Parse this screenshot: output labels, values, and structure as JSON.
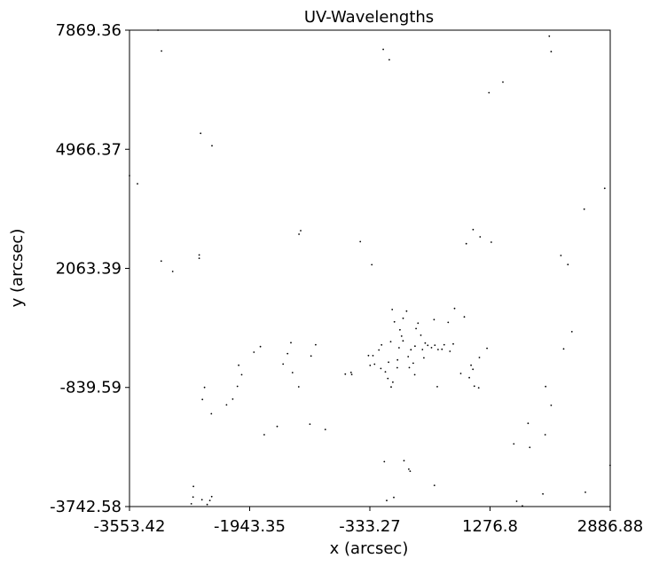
{
  "chart_data": {
    "type": "scatter",
    "title": "UV-Wavelengths",
    "xlabel": "x (arcsec)",
    "ylabel": "y (arcsec)",
    "xlim": [
      -3553.42,
      2886.88
    ],
    "ylim": [
      -3742.58,
      7869.36
    ],
    "xticks": [
      -3553.42,
      -1943.35,
      -333.27,
      1276.8,
      2886.88
    ],
    "xtick_labels": [
      "-3553.42",
      "-1943.35",
      "-333.27",
      "1276.8",
      "2886.88"
    ],
    "yticks": [
      -3742.58,
      -839.59,
      2063.39,
      4966.37,
      7869.36
    ],
    "ytick_labels": [
      "-3742.58",
      "-839.59",
      "2063.39",
      "4966.37",
      "7869.36"
    ],
    "grid": false,
    "marker_color": "#000000",
    "points": [
      [
        -3172,
        7869
      ],
      [
        -3124,
        7362
      ],
      [
        -2600,
        5355
      ],
      [
        -2448,
        5052
      ],
      [
        -3553,
        4323
      ],
      [
        -3446,
        4127
      ],
      [
        -3128,
        2240
      ],
      [
        -2975,
        1987
      ],
      [
        -2620,
        2390
      ],
      [
        -2620,
        2309
      ],
      [
        -1283,
        2895
      ],
      [
        -1260,
        2982
      ],
      [
        -462,
        2714
      ],
      [
        -307,
        2153
      ],
      [
        -154,
        7403
      ],
      [
        -73,
        7148
      ],
      [
        1262,
        6345
      ],
      [
        1449,
        6604
      ],
      [
        2070,
        7723
      ],
      [
        2095,
        7346
      ],
      [
        2539,
        3506
      ],
      [
        2813,
        4013
      ],
      [
        1144,
        2831
      ],
      [
        1050,
        3008
      ],
      [
        1294,
        2701
      ],
      [
        958,
        2665
      ],
      [
        2320,
        2157
      ],
      [
        2226,
        2378
      ],
      [
        -2548,
        -838
      ],
      [
        -2577,
        -1132
      ],
      [
        -2457,
        -1481
      ],
      [
        -2170,
        -1124
      ],
      [
        -2253,
        -1264
      ],
      [
        -2091,
        -297
      ],
      [
        -2050,
        -529
      ],
      [
        -2107,
        -812
      ],
      [
        -1886,
        20
      ],
      [
        -1799,
        156
      ],
      [
        -1749,
        -1990
      ],
      [
        -1575,
        -1789
      ],
      [
        -1495,
        -270
      ],
      [
        -1436,
        -14
      ],
      [
        -1391,
        251
      ],
      [
        -1370,
        -477
      ],
      [
        -1286,
        -823
      ],
      [
        -1137,
        -1733
      ],
      [
        -1121,
        -73
      ],
      [
        -1059,
        202
      ],
      [
        -930,
        -1864
      ],
      [
        -663,
        -515
      ],
      [
        -576,
        -522
      ],
      [
        -585,
        -474
      ],
      [
        -352,
        -63
      ],
      [
        -292,
        -64
      ],
      [
        -330,
        -303
      ],
      [
        -270,
        -271
      ],
      [
        -212,
        75
      ],
      [
        -176,
        198
      ],
      [
        -186,
        -379
      ],
      [
        -125,
        -457
      ],
      [
        -92,
        -621
      ],
      [
        -48,
        -828
      ],
      [
        -26,
        -710
      ],
      [
        -34,
        1060
      ],
      [
        -4,
        759
      ],
      [
        37,
        -168
      ],
      [
        58,
        129
      ],
      [
        34,
        -358
      ],
      [
        92,
        411
      ],
      [
        -82,
        -225
      ],
      [
        -54,
        278
      ],
      [
        69,
        564
      ],
      [
        112,
        847
      ],
      [
        111,
        297
      ],
      [
        159,
        1021
      ],
      [
        180,
        -89
      ],
      [
        195,
        -357
      ],
      [
        217,
        80
      ],
      [
        248,
        -248
      ],
      [
        268,
        -529
      ],
      [
        272,
        166
      ],
      [
        286,
        596
      ],
      [
        312,
        728
      ],
      [
        350,
        432
      ],
      [
        371,
        84
      ],
      [
        390,
        -119
      ],
      [
        408,
        242
      ],
      [
        443,
        186
      ],
      [
        492,
        130
      ],
      [
        527,
        813
      ],
      [
        538,
        190
      ],
      [
        570,
        -821
      ],
      [
        581,
        85
      ],
      [
        633,
        92
      ],
      [
        662,
        202
      ],
      [
        716,
        746
      ],
      [
        740,
        42
      ],
      [
        784,
        220
      ],
      [
        801,
        1085
      ],
      [
        885,
        -500
      ],
      [
        932,
        881
      ],
      [
        999,
        -601
      ],
      [
        1023,
        -298
      ],
      [
        1047,
        -398
      ],
      [
        1067,
        -808
      ],
      [
        1125,
        -848
      ],
      [
        1134,
        -109
      ],
      [
        1236,
        116
      ],
      [
        2022,
        -816
      ],
      [
        2096,
        -1276
      ],
      [
        2263,
        101
      ],
      [
        2374,
        520
      ],
      [
        1786,
        -1714
      ],
      [
        -2697,
        -3252
      ],
      [
        -2725,
        -3675
      ],
      [
        -2583,
        -3576
      ],
      [
        -2513,
        -3693
      ],
      [
        -2477,
        -3593
      ],
      [
        -139,
        -2648
      ],
      [
        -12,
        -3520
      ],
      [
        -108,
        -3596
      ],
      [
        124,
        -2625
      ],
      [
        188,
        -2832
      ],
      [
        206,
        -2880
      ],
      [
        532,
        -3225
      ],
      [
        1633,
        -3612
      ],
      [
        1711,
        -3727
      ],
      [
        1985,
        -3436
      ],
      [
        2554,
        -3394
      ],
      [
        2886,
        -2738
      ],
      [
        1595,
        -2217
      ],
      [
        1809,
        -2300
      ],
      [
        2016,
        -1990
      ],
      [
        -2702,
        -3512
      ],
      [
        -2452,
        -3500
      ]
    ]
  }
}
